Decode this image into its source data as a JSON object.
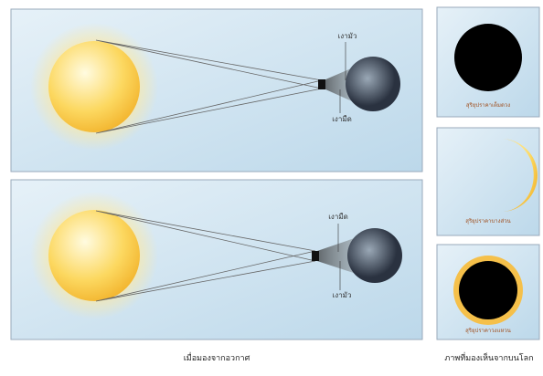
{
  "panels": [
    {
      "upper_label": "เงามัว",
      "lower_label": "เงามืด"
    },
    {
      "upper_label": "เงามืด",
      "lower_label": "เงามัว"
    }
  ],
  "views": [
    {
      "label": "สุริยุปราคาเต็มดวง"
    },
    {
      "label": "สุริยุปราคาบางส่วน"
    },
    {
      "label": "สุริยุปราคาวงแหวน"
    }
  ],
  "captions": {
    "left": "เมื่อมองจากอวกาศ",
    "right": "ภาพที่มองเห็นจากบนโลก"
  }
}
